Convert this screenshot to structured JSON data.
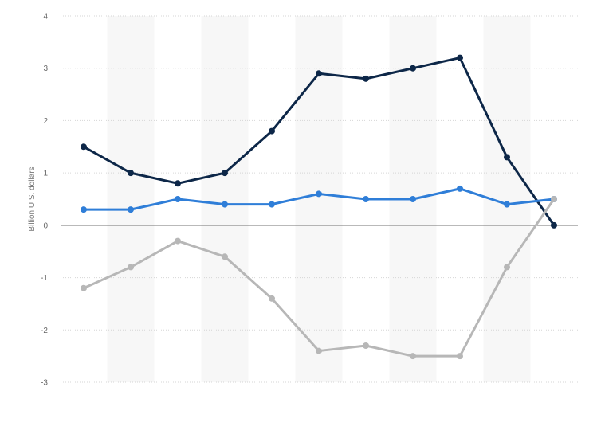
{
  "chart_data": {
    "type": "line",
    "ylabel": "Billion U.S. dollars",
    "ylim": [
      -3,
      4
    ],
    "yticks": [
      -3,
      -2,
      -1,
      0,
      1,
      2,
      3,
      4
    ],
    "x": [
      1,
      2,
      3,
      4,
      5,
      6,
      7,
      8,
      9,
      10,
      11
    ],
    "grid": true,
    "legend": "none",
    "series": [
      {
        "color": "#0d2748",
        "values": [
          1.5,
          1.0,
          0.8,
          1.0,
          1.8,
          2.9,
          2.8,
          3.0,
          3.2,
          1.3,
          0.0
        ]
      },
      {
        "color": "#2f7ed8",
        "values": [
          0.3,
          0.3,
          0.5,
          0.4,
          0.4,
          0.6,
          0.5,
          0.5,
          0.7,
          0.4,
          0.5
        ]
      },
      {
        "color": "#b7b7b7",
        "values": [
          -1.2,
          -0.8,
          -0.3,
          -0.6,
          -1.4,
          -2.4,
          -2.3,
          -2.5,
          -2.5,
          -0.8,
          0.5
        ]
      }
    ]
  }
}
